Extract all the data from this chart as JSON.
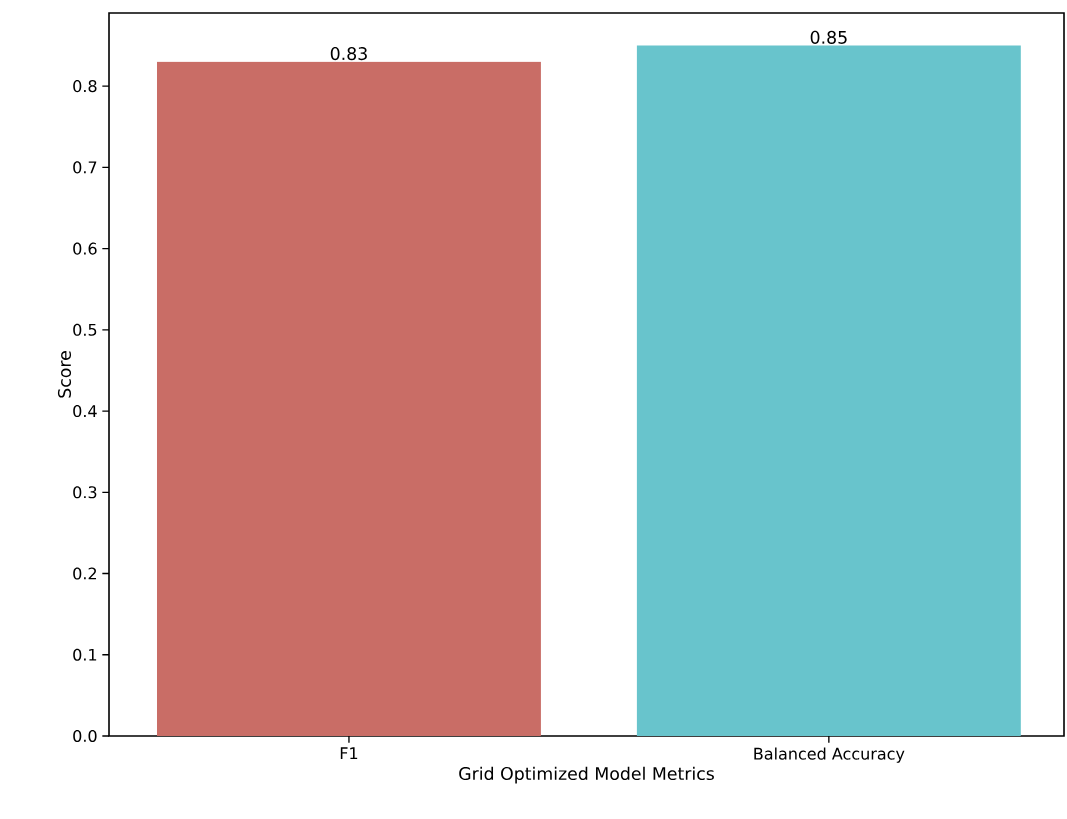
{
  "chart_data": {
    "type": "bar",
    "xlabel": "Grid Optimized Model Metrics",
    "ylabel": "Score",
    "categories": [
      "F1",
      "Balanced Accuracy"
    ],
    "values": [
      0.83,
      0.85
    ],
    "colors": [
      "#c96d66",
      "#68c4cc"
    ],
    "data_labels": true,
    "ylim": [
      0,
      0.89
    ],
    "yticks": [
      {
        "value": 0,
        "label": "0.0"
      },
      0.1,
      0.2,
      0.3,
      0.4,
      0.5,
      0.6,
      0.7,
      0.8
    ],
    "grid": false
  }
}
